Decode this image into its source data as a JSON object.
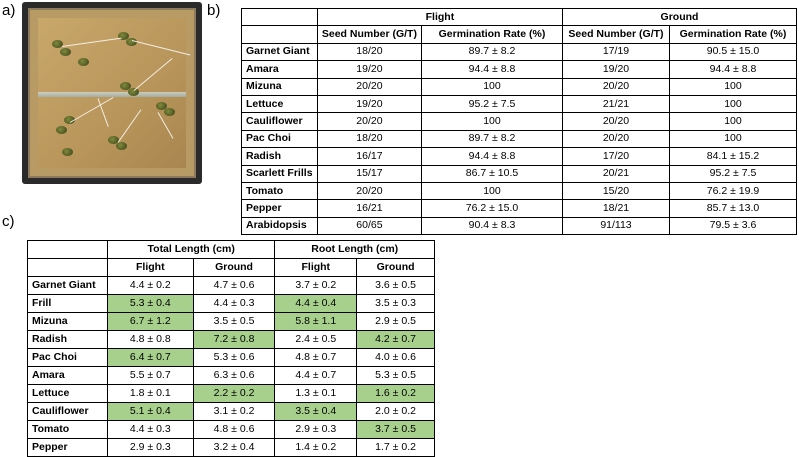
{
  "labels": {
    "a": "a)",
    "b": "b)",
    "c": "c)"
  },
  "table_b": {
    "group_flight": "Flight",
    "group_ground": "Ground",
    "col_seed": "Seed Number (G/T)",
    "col_germ": "Germination Rate (%)",
    "rows": [
      {
        "name": "Garnet Giant",
        "f_seed": "18/20",
        "f_rate": "89.7 ± 8.2",
        "g_seed": "17/19",
        "g_rate": "90.5 ± 15.0"
      },
      {
        "name": "Amara",
        "f_seed": "19/20",
        "f_rate": "94.4 ± 8.8",
        "g_seed": "19/20",
        "g_rate": "94.4 ± 8.8"
      },
      {
        "name": "Mizuna",
        "f_seed": "20/20",
        "f_rate": "100",
        "g_seed": "20/20",
        "g_rate": "100"
      },
      {
        "name": "Lettuce",
        "f_seed": "19/20",
        "f_rate": "95.2 ± 7.5",
        "g_seed": "21/21",
        "g_rate": "100"
      },
      {
        "name": "Cauliflower",
        "f_seed": "20/20",
        "f_rate": "100",
        "g_seed": "20/20",
        "g_rate": "100"
      },
      {
        "name": "Pac Choi",
        "f_seed": "18/20",
        "f_rate": "89.7 ± 8.2",
        "g_seed": "20/20",
        "g_rate": "100"
      },
      {
        "name": "Radish",
        "f_seed": "16/17",
        "f_rate": "94.4 ± 8.8",
        "g_seed": "17/20",
        "g_rate": "84.1 ± 15.2"
      },
      {
        "name": "Scarlett Frills",
        "f_seed": "15/17",
        "f_rate": "86.7 ± 10.5",
        "g_seed": "20/21",
        "g_rate": "95.2 ± 7.5"
      },
      {
        "name": "Tomato",
        "f_seed": "20/20",
        "f_rate": "100",
        "g_seed": "15/20",
        "g_rate": "76.2 ± 19.9"
      },
      {
        "name": "Pepper",
        "f_seed": "16/21",
        "f_rate": "76.2 ± 15.0",
        "g_seed": "18/21",
        "g_rate": "85.7 ± 13.0"
      },
      {
        "name": "Arabidopsis",
        "f_seed": "60/65",
        "f_rate": "90.4 ± 8.3",
        "g_seed": "91/113",
        "g_rate": "79.5 ± 3.6"
      }
    ]
  },
  "table_c": {
    "group_total": "Total Length (cm)",
    "group_root": "Root Length (cm)",
    "sub_flight": "Flight",
    "sub_ground": "Ground",
    "highlight_color": "#a8d08d",
    "rows": [
      {
        "name": "Garnet Giant",
        "tf": "4.4 ± 0.2",
        "tg": "4.7 ± 0.6",
        "rf": "3.7 ± 0.2",
        "rg": "3.6 ± 0.5",
        "hl": []
      },
      {
        "name": "Frill",
        "tf": "5.3 ± 0.4",
        "tg": "4.4 ± 0.3",
        "rf": "4.4 ± 0.4",
        "rg": "3.5 ± 0.3",
        "hl": [
          "tf",
          "rf"
        ]
      },
      {
        "name": "Mizuna",
        "tf": "6.7 ± 1.2",
        "tg": "3.5 ± 0.5",
        "rf": "5.8 ± 1.1",
        "rg": "2.9 ± 0.5",
        "hl": [
          "tf",
          "rf"
        ]
      },
      {
        "name": "Radish",
        "tf": "4.8 ± 0.8",
        "tg": "7.2 ± 0.8",
        "rf": "2.4 ± 0.5",
        "rg": "4.2 ± 0.7",
        "hl": [
          "tg",
          "rg"
        ]
      },
      {
        "name": "Pac Choi",
        "tf": "6.4 ± 0.7",
        "tg": "5.3 ± 0.6",
        "rf": "4.8 ± 0.7",
        "rg": "4.0 ± 0.6",
        "hl": [
          "tf"
        ]
      },
      {
        "name": "Amara",
        "tf": "5.5 ± 0.7",
        "tg": "6.3 ± 0.6",
        "rf": "4.4 ± 0.7",
        "rg": "5.3 ± 0.5",
        "hl": []
      },
      {
        "name": "Lettuce",
        "tf": "1.8 ± 0.1",
        "tg": "2.2 ± 0.2",
        "rf": "1.3 ± 0.1",
        "rg": "1.6 ± 0.2",
        "hl": [
          "tg",
          "rg"
        ]
      },
      {
        "name": "Cauliflower",
        "tf": "5.1 ± 0.4",
        "tg": "3.1 ± 0.2",
        "rf": "3.5 ± 0.4",
        "rg": "2.0 ± 0.2",
        "hl": [
          "tf",
          "rf"
        ]
      },
      {
        "name": "Tomato",
        "tf": "4.4 ± 0.3",
        "tg": "4.8 ± 0.6",
        "rf": "2.9 ± 0.3",
        "rg": "3.7 ± 0.5",
        "hl": [
          "rg"
        ]
      },
      {
        "name": "Pepper",
        "tf": "2.9 ± 0.3",
        "tg": "3.2 ± 0.4",
        "rf": "1.4 ± 0.2",
        "rg": "1.7 ± 0.2",
        "hl": []
      }
    ]
  }
}
